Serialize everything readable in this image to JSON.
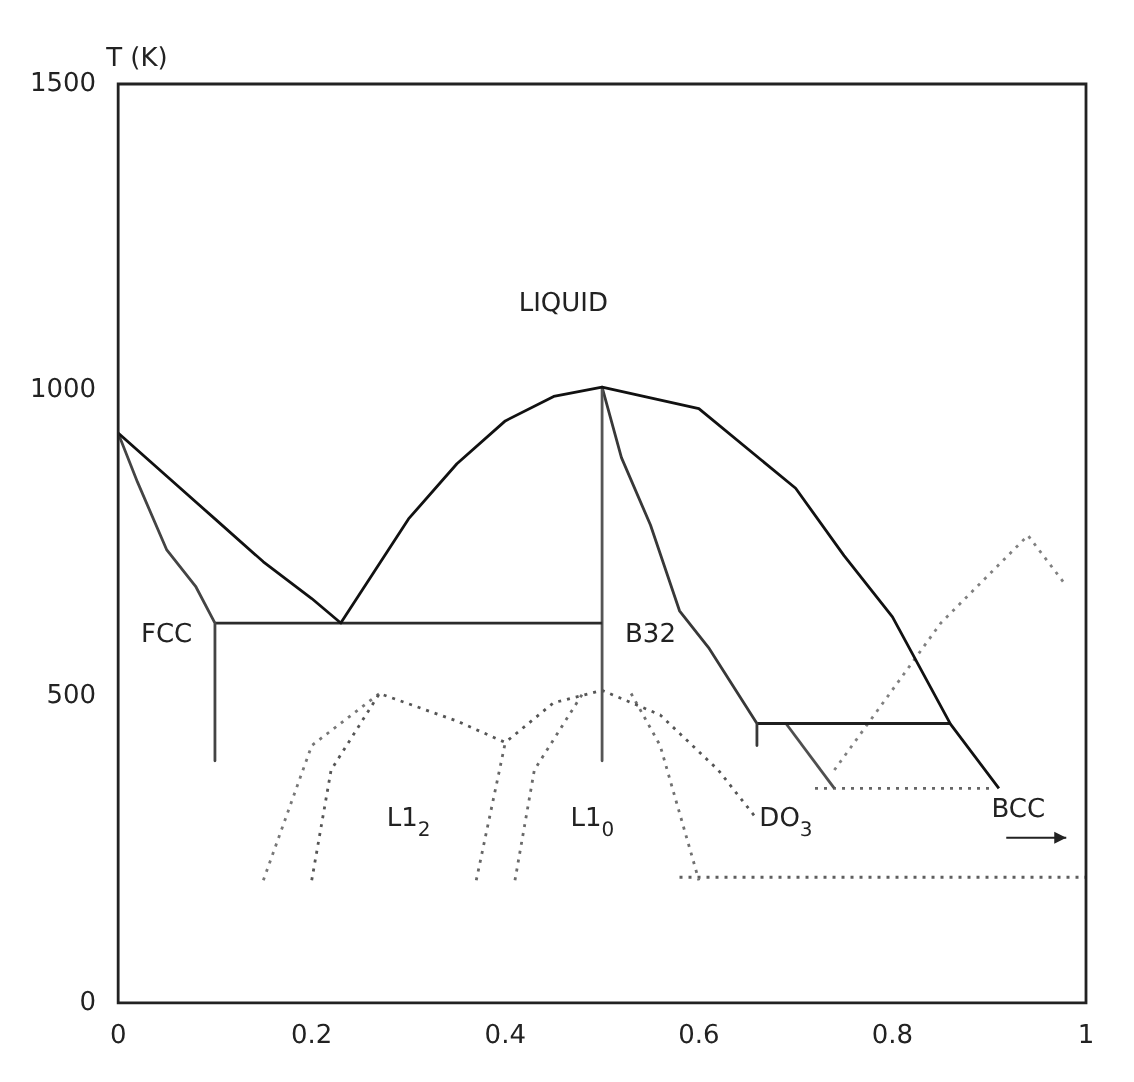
{
  "chart_data": {
    "type": "line",
    "ylabel": "T (K)",
    "xlim": [
      0,
      1
    ],
    "xticks": [
      0,
      0.2,
      0.4,
      0.6,
      0.8,
      1
    ],
    "ylim": [
      0,
      1500
    ],
    "yticks": [
      0,
      500,
      1000,
      1500
    ],
    "grid": false,
    "legend": false,
    "marker": "none",
    "series": [
      {
        "color": "#111111",
        "line_style": "solid",
        "x": [
          0,
          0.05,
          0.1,
          0.15,
          0.2,
          0.23,
          0.3,
          0.35,
          0.4,
          0.45,
          0.5,
          0.6,
          0.7,
          0.75,
          0.8,
          0.86,
          0.91
        ],
        "values": [
          930,
          860,
          790,
          720,
          660,
          620,
          790,
          880,
          950,
          990,
          1005,
          970,
          840,
          730,
          630,
          455,
          350
        ]
      },
      {
        "color": "#444444",
        "line_style": "solid",
        "x": [
          0,
          0.02,
          0.05,
          0.08,
          0.1,
          0.1
        ],
        "values": [
          930,
          850,
          740,
          680,
          620,
          395
        ]
      },
      {
        "color": "#2b2b2b",
        "line_style": "solid",
        "x": [
          0.1,
          0.5
        ],
        "values": [
          620,
          620
        ]
      },
      {
        "color": "#555555",
        "line_style": "solid",
        "x": [
          0.5,
          0.5
        ],
        "values": [
          1005,
          395
        ]
      },
      {
        "color": "#383838",
        "line_style": "solid",
        "x": [
          0.5,
          0.52,
          0.55,
          0.58,
          0.61,
          0.66,
          0.66
        ],
        "values": [
          1005,
          890,
          780,
          640,
          580,
          456,
          420
        ]
      },
      {
        "color": "#1f1f1f",
        "line_style": "solid",
        "x": [
          0.66,
          0.86
        ],
        "values": [
          456,
          456
        ]
      },
      {
        "color": "#4f4f4f",
        "line_style": "solid",
        "x": [
          0.69,
          0.74
        ],
        "values": [
          456,
          350
        ]
      },
      {
        "color": "#555555",
        "line_style": "dotted",
        "x": [
          0.2,
          0.22,
          0.27,
          0.35,
          0.4,
          0.45,
          0.5,
          0.56,
          0.62,
          0.66
        ],
        "values": [
          200,
          380,
          505,
          460,
          425,
          490,
          510,
          470,
          380,
          300
        ]
      },
      {
        "color": "#777777",
        "line_style": "dotted",
        "x": [
          0.15,
          0.2,
          0.27
        ],
        "values": [
          200,
          420,
          505
        ]
      },
      {
        "color": "#666666",
        "line_style": "dotted",
        "x": [
          0.37,
          0.4
        ],
        "values": [
          200,
          425
        ]
      },
      {
        "color": "#6a6a6a",
        "line_style": "dotted",
        "x": [
          0.41,
          0.43,
          0.48
        ],
        "values": [
          200,
          380,
          505
        ]
      },
      {
        "color": "#707070",
        "line_style": "dotted",
        "x": [
          0.53,
          0.56,
          0.6
        ],
        "values": [
          505,
          420,
          200
        ]
      },
      {
        "color": "#5e5e5e",
        "line_style": "dotted",
        "x": [
          0.58,
          1
        ],
        "values": [
          205,
          205
        ]
      },
      {
        "color": "#666666",
        "line_style": "dotted",
        "x": [
          0.72,
          0.9
        ],
        "values": [
          350,
          350
        ]
      },
      {
        "color": "#808080",
        "line_style": "dotted",
        "x": [
          0.74,
          0.85,
          0.94,
          0.98
        ],
        "values": [
          380,
          620,
          763,
          680
        ]
      }
    ],
    "annotations": [
      "LIQUID",
      "FCC",
      "B32",
      "L1$_{2}$",
      "L1$_{0}$",
      "DO$_{3}$",
      "BCC"
    ]
  }
}
